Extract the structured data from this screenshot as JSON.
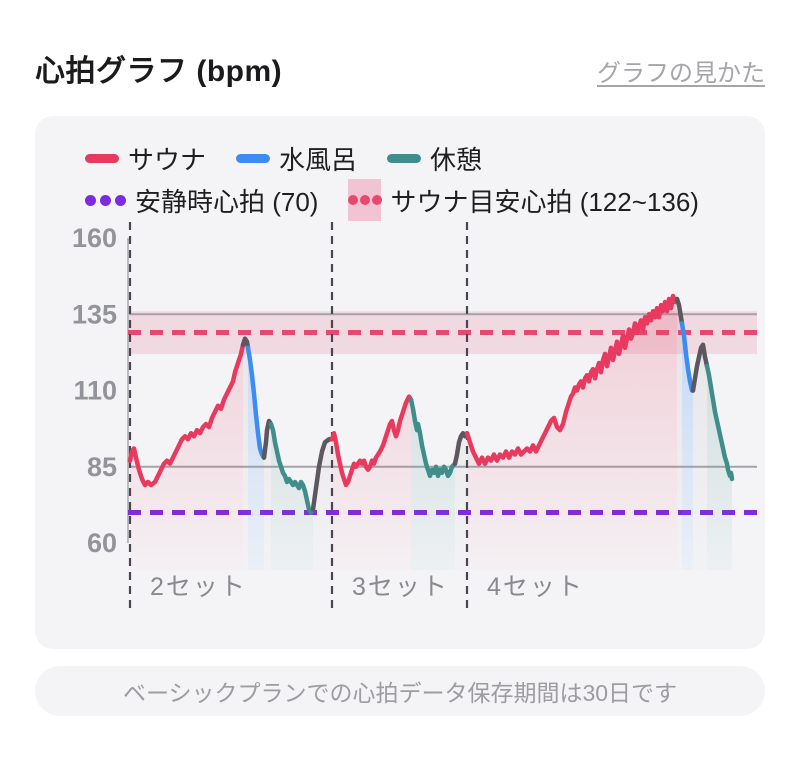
{
  "header": {
    "title": "心拍グラフ (bpm)",
    "link": "グラフの見かた"
  },
  "legend": {
    "series": [
      {
        "label": "サウナ",
        "color": "#e73a5e"
      },
      {
        "label": "水風呂",
        "color": "#3d8cf2"
      },
      {
        "label": "休憩",
        "color": "#3f8e8c"
      }
    ],
    "lines": [
      {
        "label": "安静時心拍 (70)",
        "color": "#7c2be0"
      },
      {
        "label": "サウナ目安心拍 (122~136)",
        "color": "#e8486e",
        "band_color": "#f2c4d3"
      }
    ]
  },
  "footer": {
    "note": "ベーシックプランでの心拍データ保存期間は30日です"
  },
  "colors": {
    "panel_bg": "#f4f4f6",
    "grid": "#a3a3a8",
    "tick_text": "#93939a",
    "set_line": "#4a4550",
    "resting_line": "#7c2be0",
    "target_line": "#e8486e",
    "target_band": "rgba(228,110,145,0.20)"
  },
  "chart_data": {
    "type": "line",
    "ylabel": "bpm",
    "ylim": [
      60,
      160
    ],
    "yticks": [
      160,
      135,
      110,
      85,
      60
    ],
    "solid_gridlines": [
      135,
      85
    ],
    "resting_hr": 70,
    "target_zone": {
      "min": 122,
      "max": 136,
      "mid": 129
    },
    "x_max": 602,
    "set_boundaries": [
      0,
      202,
      337
    ],
    "set_labels": [
      {
        "label": "2セット",
        "x": 20
      },
      {
        "label": "3セット",
        "x": 222
      },
      {
        "label": "4セット",
        "x": 357
      }
    ],
    "palette": {
      "sauna": "#e73a5e",
      "water": "#3d8cf2",
      "rest": "#3f8e8c",
      "move": "#5d5760"
    },
    "segments": [
      {
        "phase": "sauna",
        "points": [
          [
            0,
            87
          ],
          [
            2,
            90
          ],
          [
            4,
            91
          ],
          [
            6,
            88
          ],
          [
            9,
            84
          ],
          [
            12,
            81
          ],
          [
            15,
            79
          ],
          [
            18,
            80
          ],
          [
            21,
            79
          ],
          [
            25,
            80
          ],
          [
            28,
            82
          ],
          [
            31,
            84
          ],
          [
            34,
            86
          ],
          [
            37,
            87
          ],
          [
            40,
            86
          ],
          [
            43,
            88
          ],
          [
            46,
            90
          ],
          [
            49,
            92
          ],
          [
            52,
            94
          ],
          [
            55,
            95
          ],
          [
            58,
            94
          ],
          [
            61,
            96
          ],
          [
            64,
            95
          ],
          [
            67,
            97
          ],
          [
            70,
            96
          ],
          [
            73,
            98
          ],
          [
            76,
            99
          ],
          [
            79,
            98
          ],
          [
            82,
            101
          ],
          [
            85,
            103
          ],
          [
            88,
            105
          ],
          [
            91,
            104
          ],
          [
            94,
            107
          ],
          [
            97,
            109
          ],
          [
            100,
            111
          ],
          [
            103,
            113
          ],
          [
            105,
            116
          ],
          [
            107,
            118
          ],
          [
            109,
            120
          ],
          [
            111,
            122
          ],
          [
            113,
            125
          ]
        ]
      },
      {
        "phase": "move",
        "points": [
          [
            113,
            125
          ],
          [
            115,
            127
          ],
          [
            117,
            126
          ],
          [
            118,
            124
          ]
        ]
      },
      {
        "phase": "water",
        "points": [
          [
            118,
            124
          ],
          [
            120,
            120
          ],
          [
            122,
            115
          ],
          [
            124,
            109
          ],
          [
            126,
            102
          ],
          [
            128,
            96
          ],
          [
            130,
            91
          ],
          [
            132,
            89
          ],
          [
            134,
            88
          ]
        ]
      },
      {
        "phase": "move",
        "points": [
          [
            134,
            88
          ],
          [
            136,
            93
          ],
          [
            137,
            97
          ],
          [
            139,
            100
          ],
          [
            141,
            99
          ]
        ]
      },
      {
        "phase": "rest",
        "points": [
          [
            141,
            99
          ],
          [
            143,
            97
          ],
          [
            145,
            93
          ],
          [
            147,
            90
          ],
          [
            149,
            87
          ],
          [
            151,
            85
          ],
          [
            153,
            83
          ],
          [
            155,
            82
          ],
          [
            157,
            80
          ],
          [
            159,
            81
          ],
          [
            161,
            80
          ],
          [
            163,
            79
          ],
          [
            165,
            80
          ],
          [
            167,
            79
          ],
          [
            169,
            78
          ],
          [
            171,
            80
          ],
          [
            173,
            79
          ],
          [
            175,
            77
          ],
          [
            177,
            74
          ],
          [
            179,
            71
          ],
          [
            181,
            70
          ],
          [
            183,
            71
          ]
        ]
      },
      {
        "phase": "move",
        "points": [
          [
            183,
            71
          ],
          [
            186,
            78
          ],
          [
            189,
            85
          ],
          [
            192,
            90
          ],
          [
            195,
            93
          ],
          [
            199,
            94
          ],
          [
            202,
            94
          ]
        ]
      },
      {
        "phase": "sauna",
        "points": [
          [
            202,
            94
          ],
          [
            204,
            96
          ],
          [
            206,
            93
          ],
          [
            208,
            89
          ],
          [
            210,
            86
          ],
          [
            212,
            83
          ],
          [
            214,
            81
          ],
          [
            216,
            79
          ],
          [
            218,
            80
          ],
          [
            220,
            82
          ],
          [
            222,
            84
          ],
          [
            224,
            86
          ],
          [
            226,
            85
          ],
          [
            228,
            86
          ],
          [
            230,
            87
          ],
          [
            232,
            86
          ],
          [
            234,
            87
          ],
          [
            236,
            85
          ],
          [
            238,
            84
          ],
          [
            240,
            85
          ],
          [
            242,
            87
          ],
          [
            244,
            86
          ],
          [
            246,
            88
          ],
          [
            248,
            89
          ],
          [
            250,
            90
          ],
          [
            253,
            92
          ],
          [
            256,
            95
          ],
          [
            258,
            97
          ],
          [
            260,
            99
          ],
          [
            262,
            100
          ],
          [
            264,
            97
          ],
          [
            266,
            95
          ],
          [
            268,
            97
          ],
          [
            270,
            100
          ],
          [
            272,
            102
          ],
          [
            274,
            104
          ],
          [
            276,
            106
          ],
          [
            279,
            108
          ],
          [
            281,
            107
          ]
        ]
      },
      {
        "phase": "rest",
        "points": [
          [
            281,
            107
          ],
          [
            283,
            104
          ],
          [
            285,
            100
          ],
          [
            287,
            97
          ],
          [
            288,
            99
          ],
          [
            290,
            96
          ],
          [
            292,
            92
          ],
          [
            294,
            89
          ],
          [
            296,
            86
          ],
          [
            298,
            84
          ],
          [
            300,
            82
          ],
          [
            302,
            84
          ],
          [
            304,
            83
          ],
          [
            306,
            85
          ],
          [
            308,
            82
          ],
          [
            310,
            84
          ],
          [
            312,
            83
          ],
          [
            314,
            85
          ],
          [
            316,
            84
          ],
          [
            318,
            82
          ],
          [
            320,
            83
          ],
          [
            322,
            85
          ],
          [
            325,
            86
          ]
        ]
      },
      {
        "phase": "move",
        "points": [
          [
            325,
            86
          ],
          [
            327,
            89
          ],
          [
            329,
            93
          ],
          [
            331,
            95
          ],
          [
            333,
            96
          ],
          [
            335,
            95
          ],
          [
            337,
            96
          ]
        ]
      },
      {
        "phase": "sauna",
        "points": [
          [
            337,
            96
          ],
          [
            340,
            93
          ],
          [
            343,
            90
          ],
          [
            346,
            88
          ],
          [
            349,
            86
          ],
          [
            352,
            88
          ],
          [
            355,
            86
          ],
          [
            358,
            88
          ],
          [
            361,
            87
          ],
          [
            364,
            89
          ],
          [
            367,
            87
          ],
          [
            370,
            89
          ],
          [
            373,
            88
          ],
          [
            376,
            90
          ],
          [
            379,
            88
          ],
          [
            382,
            90
          ],
          [
            385,
            89
          ],
          [
            388,
            91
          ],
          [
            391,
            89
          ],
          [
            394,
            90
          ],
          [
            397,
            91
          ],
          [
            400,
            90
          ],
          [
            403,
            92
          ],
          [
            406,
            90
          ],
          [
            409,
            92
          ],
          [
            412,
            94
          ],
          [
            415,
            96
          ],
          [
            418,
            98
          ],
          [
            421,
            100
          ],
          [
            424,
            101
          ],
          [
            427,
            98
          ],
          [
            430,
            97
          ],
          [
            433,
            99
          ],
          [
            436,
            103
          ],
          [
            439,
            106
          ],
          [
            441,
            108
          ],
          [
            443,
            109
          ],
          [
            445,
            111
          ],
          [
            447,
            110
          ],
          [
            449,
            112
          ],
          [
            451,
            113
          ],
          [
            453,
            111
          ],
          [
            455,
            114
          ],
          [
            457,
            115
          ],
          [
            459,
            113
          ],
          [
            461,
            116
          ],
          [
            463,
            117
          ],
          [
            465,
            114
          ],
          [
            467,
            117
          ],
          [
            469,
            119
          ],
          [
            471,
            116
          ],
          [
            473,
            120
          ],
          [
            475,
            122
          ],
          [
            477,
            118
          ],
          [
            479,
            121
          ],
          [
            481,
            124
          ],
          [
            483,
            120
          ],
          [
            485,
            123
          ],
          [
            487,
            126
          ],
          [
            489,
            122
          ],
          [
            491,
            125
          ],
          [
            493,
            128
          ],
          [
            495,
            124
          ],
          [
            497,
            127
          ],
          [
            499,
            130
          ],
          [
            501,
            127
          ],
          [
            503,
            129
          ],
          [
            505,
            132
          ],
          [
            507,
            129
          ],
          [
            509,
            131
          ],
          [
            511,
            133
          ],
          [
            513,
            130
          ],
          [
            515,
            134
          ],
          [
            517,
            132
          ],
          [
            519,
            135
          ],
          [
            521,
            133
          ],
          [
            523,
            136
          ],
          [
            525,
            134
          ],
          [
            527,
            137
          ],
          [
            529,
            134
          ],
          [
            531,
            138
          ],
          [
            533,
            136
          ],
          [
            535,
            139
          ],
          [
            537,
            136
          ],
          [
            539,
            140
          ],
          [
            541,
            137
          ],
          [
            543,
            141
          ],
          [
            545,
            139
          ],
          [
            547,
            140
          ]
        ]
      },
      {
        "phase": "move",
        "points": [
          [
            547,
            140
          ],
          [
            549,
            138
          ],
          [
            551,
            134
          ],
          [
            552,
            132
          ]
        ]
      },
      {
        "phase": "water",
        "points": [
          [
            552,
            132
          ],
          [
            554,
            128
          ],
          [
            556,
            122
          ],
          [
            558,
            117
          ],
          [
            560,
            113
          ],
          [
            562,
            110
          ],
          [
            563,
            110
          ]
        ]
      },
      {
        "phase": "move",
        "points": [
          [
            563,
            110
          ],
          [
            565,
            114
          ],
          [
            567,
            118
          ],
          [
            569,
            121
          ],
          [
            571,
            124
          ],
          [
            573,
            125
          ],
          [
            575,
            121
          ],
          [
            577,
            118
          ]
        ]
      },
      {
        "phase": "rest",
        "points": [
          [
            577,
            118
          ],
          [
            579,
            115
          ],
          [
            581,
            111
          ],
          [
            583,
            107
          ],
          [
            585,
            103
          ],
          [
            587,
            100
          ],
          [
            589,
            97
          ],
          [
            591,
            94
          ],
          [
            593,
            91
          ],
          [
            595,
            88
          ],
          [
            597,
            86
          ],
          [
            598,
            84
          ],
          [
            600,
            82
          ],
          [
            601,
            83
          ],
          [
            602,
            81
          ]
        ]
      }
    ]
  }
}
